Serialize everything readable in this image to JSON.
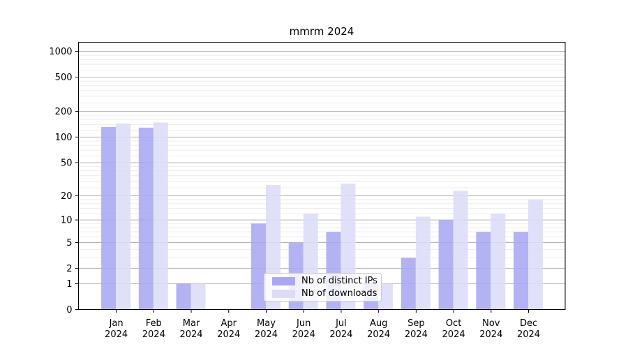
{
  "title": "mmrm 2024",
  "y_axis": {
    "tick_values": [
      1000,
      500,
      200,
      100,
      50,
      20,
      10,
      5,
      2,
      1,
      0
    ],
    "tick_labels": [
      "1000",
      "500",
      "200",
      "100",
      "50",
      "20",
      "10",
      "5",
      "2",
      "1",
      "0"
    ]
  },
  "x_axis": {
    "months": [
      "Jan",
      "Feb",
      "Mar",
      "Apr",
      "May",
      "Jun",
      "Jul",
      "Aug",
      "Sep",
      "Oct",
      "Nov",
      "Dec"
    ],
    "year": "2024"
  },
  "legend": {
    "items": [
      {
        "label": "Nb of distinct IPs",
        "color": "#a9a9f1"
      },
      {
        "label": "Nb of downloads",
        "color": "#dcdcf8"
      }
    ]
  },
  "chart_data": {
    "type": "bar",
    "title": "mmrm 2024",
    "categories": [
      "Jan 2024",
      "Feb 2024",
      "Mar 2024",
      "Apr 2024",
      "May 2024",
      "Jun 2024",
      "Jul 2024",
      "Aug 2024",
      "Sep 2024",
      "Oct 2024",
      "Nov 2024",
      "Dec 2024"
    ],
    "series": [
      {
        "name": "Nb of distinct IPs",
        "color": "#a9a9f1",
        "values": [
          131,
          129,
          1,
          0,
          9,
          5,
          7,
          1,
          3,
          10,
          7,
          7
        ]
      },
      {
        "name": "Nb of downloads",
        "color": "#dcdcf8",
        "values": [
          144,
          148,
          1,
          0,
          27,
          12,
          28,
          1,
          11,
          23,
          12,
          18
        ]
      }
    ],
    "xlabel": "",
    "ylabel": "",
    "yscale": "log10(value+1)",
    "y_ticks": [
      0,
      1,
      2,
      5,
      10,
      20,
      50,
      100,
      200,
      500,
      1000
    ],
    "ylim": [
      0,
      1270
    ],
    "grid": "horizontal major and faint minor gridlines",
    "legend_position": "inside lower center-right"
  }
}
